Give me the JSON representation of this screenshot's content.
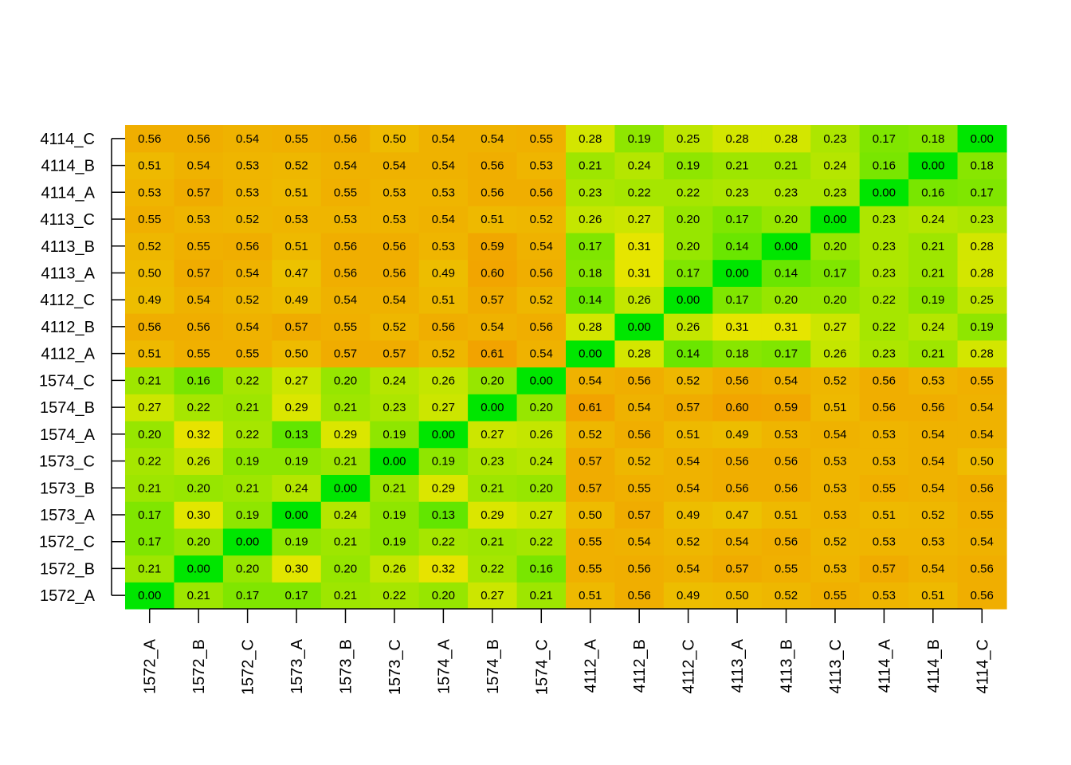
{
  "chart_data": {
    "type": "heatmap",
    "title": "",
    "xlabel": "",
    "ylabel": "",
    "x_categories": [
      "1572_A",
      "1572_B",
      "1572_C",
      "1573_A",
      "1573_B",
      "1573_C",
      "1574_A",
      "1574_B",
      "1574_C",
      "4112_A",
      "4112_B",
      "4112_C",
      "4113_A",
      "4113_B",
      "4113_C",
      "4114_A",
      "4114_B",
      "4114_C"
    ],
    "y_categories": [
      "1572_A",
      "1572_B",
      "1572_C",
      "1573_A",
      "1573_B",
      "1573_C",
      "1574_A",
      "1574_B",
      "1574_C",
      "4112_A",
      "4112_B",
      "4112_C",
      "4113_A",
      "4113_B",
      "4113_C",
      "4114_A",
      "4114_B",
      "4114_C"
    ],
    "value_range": [
      0,
      0.61
    ],
    "color_scale": [
      "#00e600",
      "#e6e600",
      "#f2a300"
    ],
    "values": [
      [
        "0.00",
        "0.21",
        "0.17",
        "0.17",
        "0.21",
        "0.22",
        "0.20",
        "0.27",
        "0.21",
        "0.51",
        "0.56",
        "0.49",
        "0.50",
        "0.52",
        "0.55",
        "0.53",
        "0.51",
        "0.56"
      ],
      [
        "0.21",
        "0.00",
        "0.20",
        "0.30",
        "0.20",
        "0.26",
        "0.32",
        "0.22",
        "0.16",
        "0.55",
        "0.56",
        "0.54",
        "0.57",
        "0.55",
        "0.53",
        "0.57",
        "0.54",
        "0.56"
      ],
      [
        "0.17",
        "0.20",
        "0.00",
        "0.19",
        "0.21",
        "0.19",
        "0.22",
        "0.21",
        "0.22",
        "0.55",
        "0.54",
        "0.52",
        "0.54",
        "0.56",
        "0.52",
        "0.53",
        "0.53",
        "0.54"
      ],
      [
        "0.17",
        "0.30",
        "0.19",
        "0.00",
        "0.24",
        "0.19",
        "0.13",
        "0.29",
        "0.27",
        "0.50",
        "0.57",
        "0.49",
        "0.47",
        "0.51",
        "0.53",
        "0.51",
        "0.52",
        "0.55"
      ],
      [
        "0.21",
        "0.20",
        "0.21",
        "0.24",
        "0.00",
        "0.21",
        "0.29",
        "0.21",
        "0.20",
        "0.57",
        "0.55",
        "0.54",
        "0.56",
        "0.56",
        "0.53",
        "0.55",
        "0.54",
        "0.56"
      ],
      [
        "0.22",
        "0.26",
        "0.19",
        "0.19",
        "0.21",
        "0.00",
        "0.19",
        "0.23",
        "0.24",
        "0.57",
        "0.52",
        "0.54",
        "0.56",
        "0.56",
        "0.53",
        "0.53",
        "0.54",
        "0.50"
      ],
      [
        "0.20",
        "0.32",
        "0.22",
        "0.13",
        "0.29",
        "0.19",
        "0.00",
        "0.27",
        "0.26",
        "0.52",
        "0.56",
        "0.51",
        "0.49",
        "0.53",
        "0.54",
        "0.53",
        "0.54",
        "0.54"
      ],
      [
        "0.27",
        "0.22",
        "0.21",
        "0.29",
        "0.21",
        "0.23",
        "0.27",
        "0.00",
        "0.20",
        "0.61",
        "0.54",
        "0.57",
        "0.60",
        "0.59",
        "0.51",
        "0.56",
        "0.56",
        "0.54"
      ],
      [
        "0.21",
        "0.16",
        "0.22",
        "0.27",
        "0.20",
        "0.24",
        "0.26",
        "0.20",
        "0.00",
        "0.54",
        "0.56",
        "0.52",
        "0.56",
        "0.54",
        "0.52",
        "0.56",
        "0.53",
        "0.55"
      ],
      [
        "0.51",
        "0.55",
        "0.55",
        "0.50",
        "0.57",
        "0.57",
        "0.52",
        "0.61",
        "0.54",
        "0.00",
        "0.28",
        "0.14",
        "0.18",
        "0.17",
        "0.26",
        "0.23",
        "0.21",
        "0.28"
      ],
      [
        "0.56",
        "0.56",
        "0.54",
        "0.57",
        "0.55",
        "0.52",
        "0.56",
        "0.54",
        "0.56",
        "0.28",
        "0.00",
        "0.26",
        "0.31",
        "0.31",
        "0.27",
        "0.22",
        "0.24",
        "0.19"
      ],
      [
        "0.49",
        "0.54",
        "0.52",
        "0.49",
        "0.54",
        "0.54",
        "0.51",
        "0.57",
        "0.52",
        "0.14",
        "0.26",
        "0.00",
        "0.17",
        "0.20",
        "0.20",
        "0.22",
        "0.19",
        "0.25"
      ],
      [
        "0.50",
        "0.57",
        "0.54",
        "0.47",
        "0.56",
        "0.56",
        "0.49",
        "0.60",
        "0.56",
        "0.18",
        "0.31",
        "0.17",
        "0.00",
        "0.14",
        "0.17",
        "0.23",
        "0.21",
        "0.28"
      ],
      [
        "0.52",
        "0.55",
        "0.56",
        "0.51",
        "0.56",
        "0.56",
        "0.53",
        "0.59",
        "0.54",
        "0.17",
        "0.31",
        "0.20",
        "0.14",
        "0.00",
        "0.20",
        "0.23",
        "0.21",
        "0.28"
      ],
      [
        "0.55",
        "0.53",
        "0.52",
        "0.53",
        "0.53",
        "0.53",
        "0.54",
        "0.51",
        "0.52",
        "0.26",
        "0.27",
        "0.20",
        "0.17",
        "0.20",
        "0.00",
        "0.23",
        "0.24",
        "0.23"
      ],
      [
        "0.53",
        "0.57",
        "0.53",
        "0.51",
        "0.55",
        "0.53",
        "0.53",
        "0.56",
        "0.56",
        "0.23",
        "0.22",
        "0.22",
        "0.23",
        "0.23",
        "0.23",
        "0.00",
        "0.16",
        "0.17"
      ],
      [
        "0.51",
        "0.54",
        "0.53",
        "0.52",
        "0.54",
        "0.54",
        "0.54",
        "0.56",
        "0.53",
        "0.21",
        "0.24",
        "0.19",
        "0.21",
        "0.21",
        "0.24",
        "0.16",
        "0.00",
        "0.18"
      ],
      [
        "0.56",
        "0.56",
        "0.54",
        "0.55",
        "0.56",
        "0.50",
        "0.54",
        "0.54",
        "0.55",
        "0.28",
        "0.19",
        "0.25",
        "0.28",
        "0.28",
        "0.23",
        "0.17",
        "0.18",
        "0.00"
      ]
    ]
  }
}
